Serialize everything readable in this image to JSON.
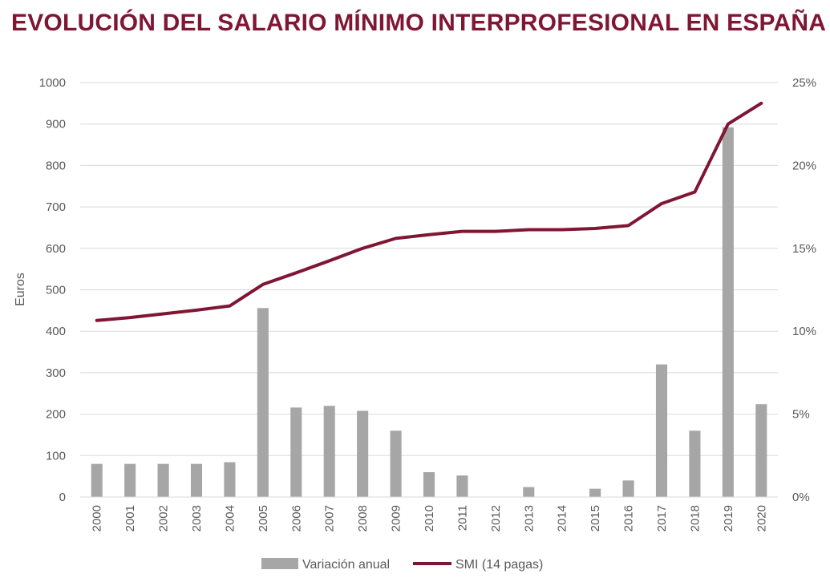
{
  "colors": {
    "title": "#7f1734",
    "line": "#7f1734",
    "bars": "#a6a6a6",
    "grid": "#d9d9d9",
    "text": "#595959"
  },
  "chart_data": {
    "type": "bar",
    "title": "EVOLUCIÓN DEL SALARIO MÍNIMO INTERPROFESIONAL EN ESPAÑA",
    "ylabel": "Euros",
    "y2label": "",
    "categories": [
      "2000",
      "2001",
      "2002",
      "2003",
      "2004",
      "2005",
      "2006",
      "2007",
      "2008",
      "2009",
      "2010",
      "2011",
      "2012",
      "2013",
      "2014",
      "2015",
      "2016",
      "2017",
      "2018",
      "2019",
      "2020"
    ],
    "ylim": [
      0,
      1000
    ],
    "y2lim": [
      0,
      25
    ],
    "yticks": [
      "0",
      "100",
      "200",
      "300",
      "400",
      "500",
      "600",
      "700",
      "800",
      "900",
      "1000"
    ],
    "y2ticks": [
      "0%",
      "5%",
      "10%",
      "15%",
      "20%",
      "25%"
    ],
    "grid": true,
    "legend_position": "bottom",
    "series": [
      {
        "name": "Variación anual",
        "type": "bar",
        "axis": "right",
        "unit": "%",
        "values": [
          2.0,
          2.0,
          2.0,
          2.0,
          2.1,
          11.4,
          5.4,
          5.5,
          5.2,
          4.0,
          1.5,
          1.3,
          0.0,
          0.6,
          0.0,
          0.5,
          1.0,
          8.0,
          4.0,
          22.3,
          5.6
        ]
      },
      {
        "name": "SMI (14 pagas)",
        "type": "line",
        "axis": "left",
        "unit": "Euros",
        "values": [
          426,
          433,
          442,
          451,
          461,
          513,
          541,
          570,
          600,
          624,
          633,
          641,
          641,
          645,
          645,
          648,
          655,
          708,
          736,
          900,
          950
        ]
      }
    ]
  }
}
